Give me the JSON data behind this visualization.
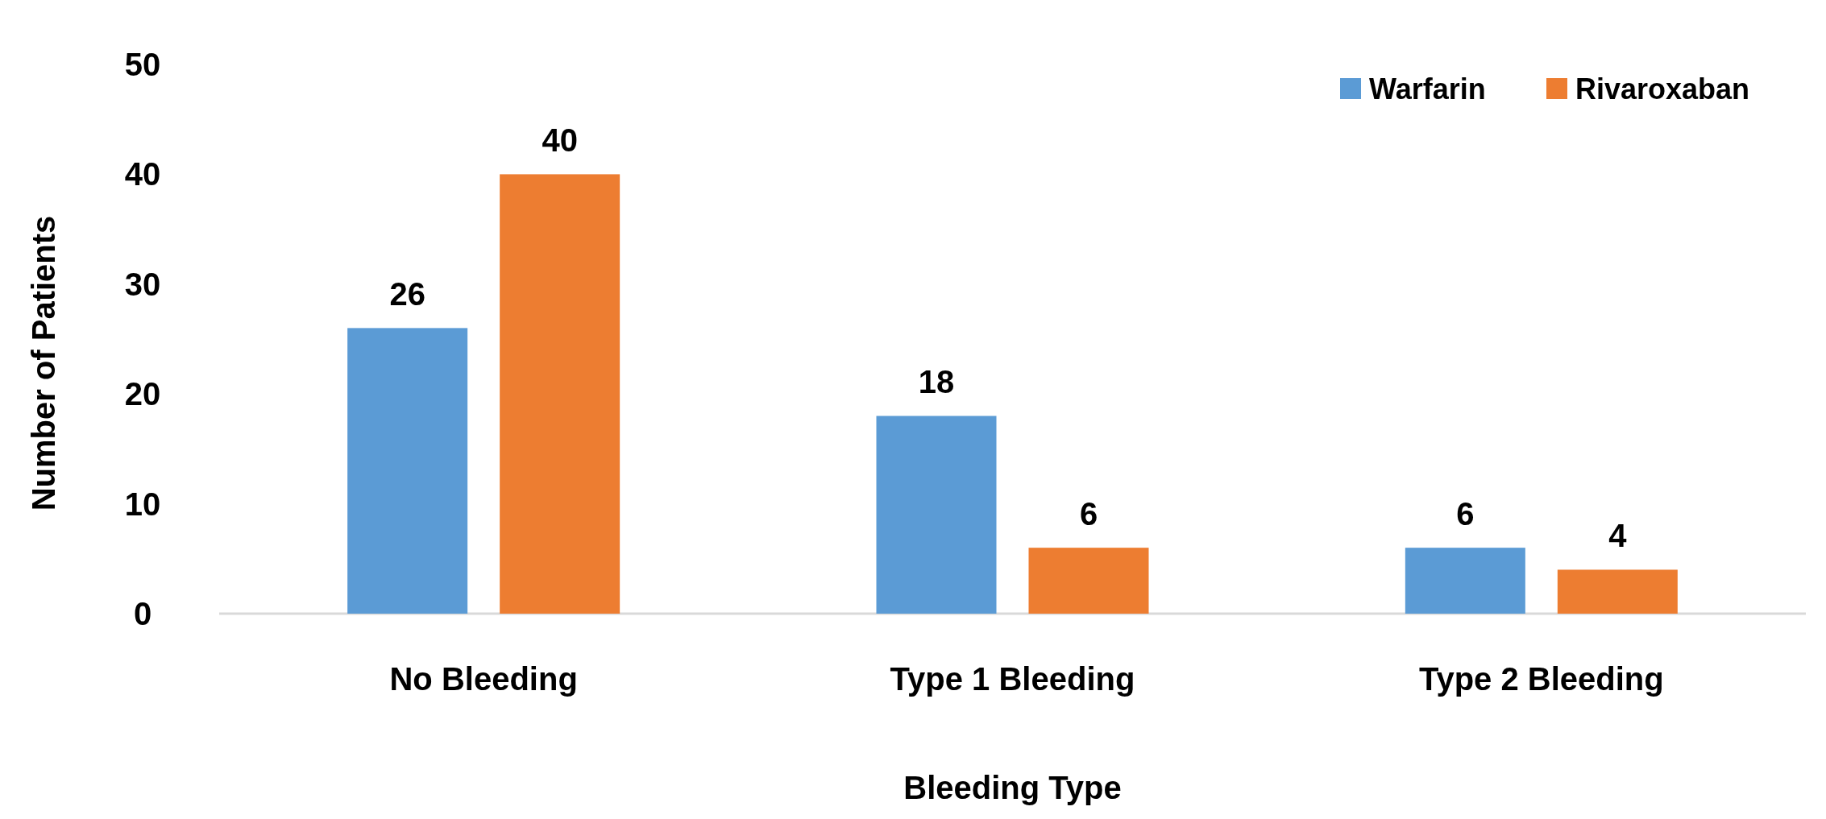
{
  "chart_data": {
    "type": "bar",
    "xlabel": "Bleeding Type",
    "ylabel": "Number of Patients",
    "categories": [
      "No Bleeding",
      "Type 1 Bleeding",
      "Type 2 Bleeding"
    ],
    "series": [
      {
        "name": "Warfarin",
        "color": "#5b9bd5",
        "values": [
          26,
          18,
          6
        ]
      },
      {
        "name": "Rivaroxaban",
        "color": "#ed7d31",
        "values": [
          40,
          6,
          4
        ]
      }
    ],
    "ylim": [
      0,
      50
    ],
    "yticks": [
      0,
      10,
      20,
      30,
      40,
      50
    ],
    "grid": false,
    "legend": "top right",
    "data_labels": true
  }
}
